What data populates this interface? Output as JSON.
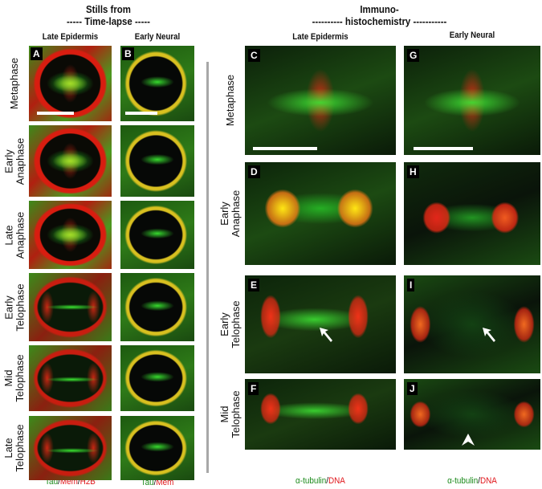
{
  "headers": {
    "left": [
      "Stills from",
      "----- Time-lapse -----"
    ],
    "right": [
      "Immuno-",
      "---------- histochemistry -----------"
    ]
  },
  "columns": {
    "A": "Late Epidermis",
    "B": "Early Neural",
    "C": "Late Epidermis",
    "G": "Early Neural"
  },
  "left_rows": [
    [
      "Metaphase"
    ],
    [
      "Early",
      "Anaphase"
    ],
    [
      "Late",
      "Anaphase"
    ],
    [
      "Early",
      "Telophase"
    ],
    [
      "Mid",
      "Telophase"
    ],
    [
      "Late",
      "Telophase"
    ]
  ],
  "right_rows": [
    [
      "Metaphase"
    ],
    [
      "Early",
      "Anaphase"
    ],
    [
      "Early",
      "Telophase"
    ],
    [
      "Mid",
      "Telophase"
    ]
  ],
  "panel_labels": [
    "A",
    "B",
    "C",
    "D",
    "E",
    "F",
    "G",
    "H",
    "I",
    "J"
  ],
  "legends": {
    "A": [
      {
        "t": "Tau",
        "c": "green"
      },
      {
        "t": "/",
        "c": "black"
      },
      {
        "t": "Mem",
        "c": "red"
      },
      {
        "t": "/",
        "c": "black"
      },
      {
        "t": "H2B",
        "c": "red"
      }
    ],
    "B": [
      {
        "t": "Tau",
        "c": "green"
      },
      {
        "t": "/",
        "c": "black"
      },
      {
        "t": "Mem",
        "c": "red"
      }
    ],
    "C": [
      {
        "t": "α-tubulin",
        "c": "green"
      },
      {
        "t": "/",
        "c": "black"
      },
      {
        "t": "DNA",
        "c": "red"
      }
    ],
    "G": [
      {
        "t": "α-tubulin",
        "c": "green"
      },
      {
        "t": "/",
        "c": "black"
      },
      {
        "t": "DNA",
        "c": "red"
      }
    ]
  },
  "colors": {
    "green": "#1a8a1a",
    "red": "#e0161b"
  },
  "annotations": [
    "arrow-in-E",
    "arrow-in-I",
    "arrowhead-in-J",
    "scale-bars-A-B-C-G"
  ]
}
